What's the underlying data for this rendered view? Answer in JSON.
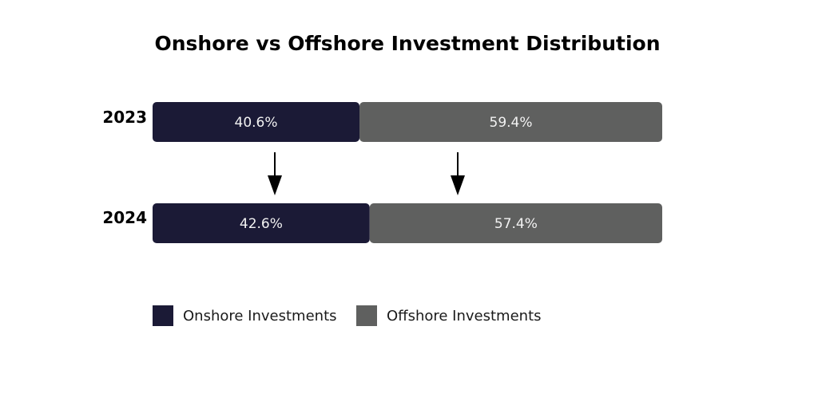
{
  "chart_data": {
    "type": "bar",
    "orientation": "horizontal",
    "stacked": true,
    "title": "Onshore vs Offshore Investment Distribution",
    "xlabel": "",
    "ylabel": "",
    "categories": [
      "2023",
      "2024"
    ],
    "unit": "%",
    "xlim": [
      0,
      100
    ],
    "grid": false,
    "legend_position": "bottom",
    "series": [
      {
        "name": "Onshore Investments",
        "values": [
          40.6,
          42.6
        ],
        "labels": [
          "40.6%",
          "42.6%"
        ],
        "color": "#1b1a36"
      },
      {
        "name": "Offshore Investments",
        "values": [
          59.4,
          57.4
        ],
        "labels": [
          "59.4%",
          "57.4%"
        ],
        "color": "#5f605f"
      }
    ],
    "annotations": "downward arrows from 2023 bar to 2024 bar"
  }
}
